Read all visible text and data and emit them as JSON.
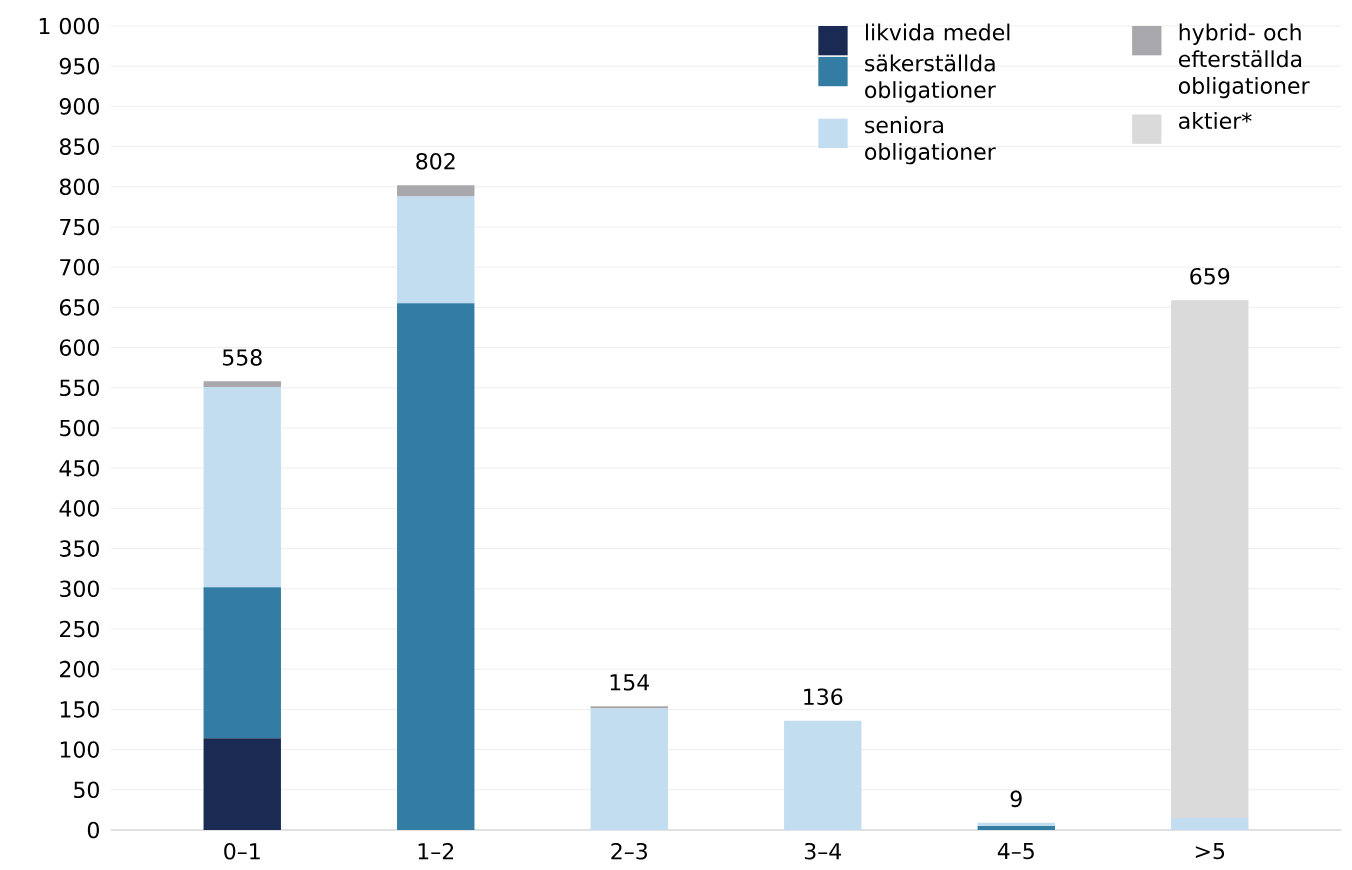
{
  "chart_data": {
    "type": "bar",
    "stacked": true,
    "categories": [
      "0–1",
      "1–2",
      "2–3",
      "3–4",
      "4–5",
      ">5"
    ],
    "series": [
      {
        "name": "likvida medel",
        "color": "#1b2a52",
        "values": [
          114,
          0,
          0,
          0,
          0,
          0
        ]
      },
      {
        "name": "säkerställda obligationer",
        "color": "#337ca3",
        "values": [
          188,
          655,
          0,
          0,
          5,
          0
        ]
      },
      {
        "name": "seniora obligationer",
        "color": "#c3ddf0",
        "values": [
          249,
          133,
          151,
          136,
          4,
          15
        ]
      },
      {
        "name": "hybrid- och efterställda obligationer",
        "color": "#a8a8ac",
        "values": [
          7,
          14,
          3,
          0,
          0,
          0
        ]
      },
      {
        "name": "aktier*",
        "color": "#dadadb",
        "values": [
          0,
          0,
          0,
          0,
          0,
          644
        ]
      }
    ],
    "totals": [
      "558",
      "802",
      "154",
      "136",
      "9",
      "659"
    ],
    "ylim": [
      0,
      1000
    ],
    "yticks": [
      0,
      50,
      100,
      150,
      200,
      250,
      300,
      350,
      400,
      450,
      500,
      550,
      600,
      650,
      700,
      750,
      800,
      850,
      900,
      950,
      {
        "value": 1000,
        "label": "1 000"
      }
    ],
    "grid": "y",
    "legend": "top right"
  }
}
